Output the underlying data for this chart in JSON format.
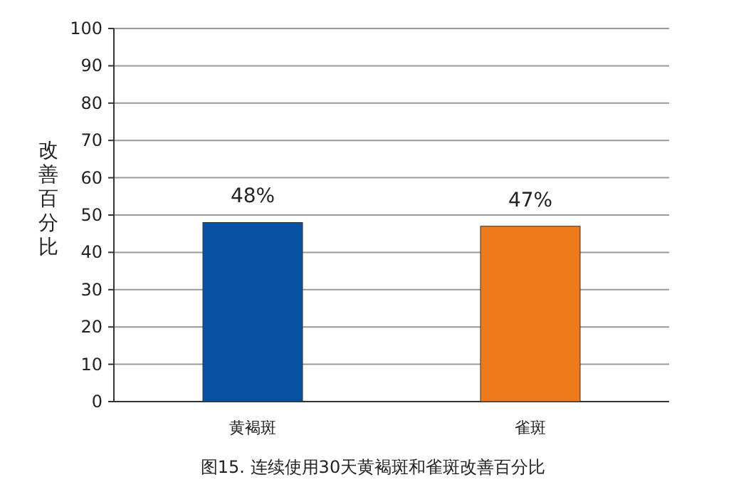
{
  "chart_data": {
    "type": "bar",
    "categories": [
      "黄褐斑",
      "雀斑"
    ],
    "values": [
      48,
      47
    ],
    "colors": [
      "#0752a3",
      "#ef7a1b"
    ],
    "value_labels": [
      "48%",
      "47%"
    ],
    "ylabel": "改善百分比",
    "ylim": [
      0,
      100
    ],
    "yticks": [
      0,
      10,
      20,
      30,
      40,
      50,
      60,
      70,
      80,
      90,
      100
    ],
    "grid": "y",
    "annotations": [
      "图15. 连续使用30天黄褐斑和雀斑改善百分比"
    ]
  }
}
